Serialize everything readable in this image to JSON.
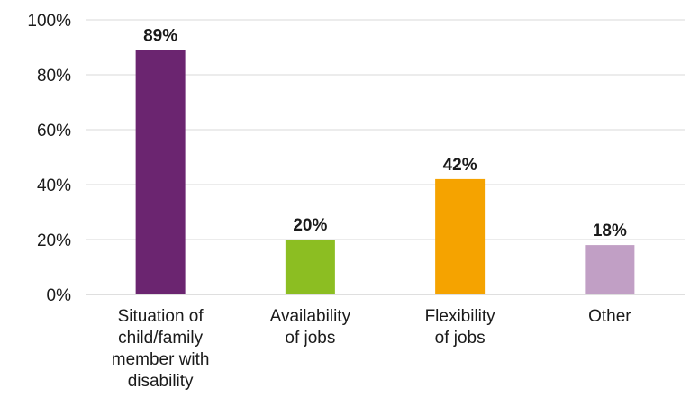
{
  "chart_data": {
    "type": "bar",
    "title": "",
    "xlabel": "",
    "ylabel": "",
    "categories": [
      [
        "Situation of",
        "child/family",
        "member with",
        "disability"
      ],
      [
        "Availability",
        "of jobs"
      ],
      [
        "Flexibility",
        "of jobs"
      ],
      [
        "Other"
      ]
    ],
    "values": [
      89,
      20,
      42,
      18
    ],
    "value_labels": [
      "89%",
      "20%",
      "42%",
      "18%"
    ],
    "colors": [
      "#6b2570",
      "#8cbe22",
      "#f5a300",
      "#c19fc5"
    ],
    "ylim": [
      0,
      100
    ],
    "yticks": [
      0,
      20,
      40,
      60,
      80,
      100
    ],
    "ytick_labels": [
      "0%",
      "20%",
      "40%",
      "60%",
      "80%",
      "100%"
    ],
    "grid": true,
    "legend": false
  }
}
